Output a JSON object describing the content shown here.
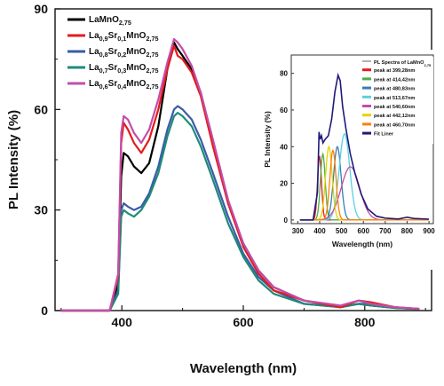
{
  "chart_data": [
    {
      "type": "line",
      "xlabel": "Wavelength (nm)",
      "ylabel": "PL Intensity (%)",
      "xlim": [
        290,
        910
      ],
      "ylim": [
        0,
        90
      ],
      "x_ticks": [
        "400",
        "600",
        "800"
      ],
      "x_tick_values": [
        400,
        600,
        800
      ],
      "y_ticks": [
        "0",
        "30",
        "60",
        "90"
      ],
      "y_tick_values": [
        0,
        30,
        60,
        90
      ],
      "legend_placement": "top-left",
      "series": [
        {
          "legend": [
            [
              "La",
              "MnO",
              ""
            ],
            [
              "",
              "",
              "2,75"
            ]
          ],
          "label_plain": "LaMnO2,75",
          "label_parts": {
            "main": "LaMnO",
            "sub": "2,75"
          },
          "color": "#000000",
          "points": [
            [
              300,
              0
            ],
            [
              380,
              0
            ],
            [
              394,
              8
            ],
            [
              399,
              40
            ],
            [
              403,
              47
            ],
            [
              410,
              46
            ],
            [
              420,
              43
            ],
            [
              432,
              41
            ],
            [
              445,
              44
            ],
            [
              460,
              55
            ],
            [
              475,
              72
            ],
            [
              486,
              80
            ],
            [
              492,
              78
            ],
            [
              500,
              76
            ],
            [
              515,
              72
            ],
            [
              530,
              65
            ],
            [
              550,
              50
            ],
            [
              575,
              32
            ],
            [
              600,
              20
            ],
            [
              625,
              12
            ],
            [
              650,
              7
            ],
            [
              700,
              3
            ],
            [
              760,
              1
            ],
            [
              790,
              2
            ],
            [
              810,
              1.5
            ],
            [
              850,
              0.8
            ],
            [
              890,
              0.5
            ]
          ]
        },
        {
          "label_plain": "La0,9Sr0,1MnO2,75",
          "label_parts": {
            "a": "La",
            "a_sub": "0,9",
            "b": "Sr",
            "b_sub": "0,1",
            "c": "MnO",
            "c_sub": "2,75"
          },
          "color": "#e41a1c",
          "points": [
            [
              300,
              0
            ],
            [
              380,
              0
            ],
            [
              394,
              10
            ],
            [
              399,
              50
            ],
            [
              403,
              56
            ],
            [
              410,
              54
            ],
            [
              420,
              50
            ],
            [
              432,
              47
            ],
            [
              445,
              51
            ],
            [
              460,
              60
            ],
            [
              475,
              72
            ],
            [
              486,
              79
            ],
            [
              492,
              76
            ],
            [
              500,
              75
            ],
            [
              515,
              71
            ],
            [
              530,
              64
            ],
            [
              550,
              49
            ],
            [
              575,
              32
            ],
            [
              600,
              19
            ],
            [
              625,
              11
            ],
            [
              650,
              6
            ],
            [
              700,
              3
            ],
            [
              760,
              1
            ],
            [
              790,
              3
            ],
            [
              810,
              2.5
            ],
            [
              850,
              1
            ],
            [
              890,
              0.5
            ]
          ]
        },
        {
          "label_plain": "La0,8Sr0,2MnO2,75",
          "label_parts": {
            "a": "La",
            "a_sub": "0,8",
            "b": "Sr",
            "b_sub": "0,2",
            "c": "MnO",
            "c_sub": "2,75"
          },
          "color": "#3a5ba8",
          "points": [
            [
              300,
              0
            ],
            [
              380,
              0
            ],
            [
              394,
              6
            ],
            [
              399,
              30
            ],
            [
              403,
              32
            ],
            [
              410,
              31
            ],
            [
              420,
              30
            ],
            [
              432,
              31
            ],
            [
              445,
              35
            ],
            [
              460,
              43
            ],
            [
              475,
              54
            ],
            [
              486,
              60
            ],
            [
              492,
              61
            ],
            [
              500,
              60
            ],
            [
              515,
              57
            ],
            [
              530,
              51
            ],
            [
              550,
              41
            ],
            [
              575,
              28
            ],
            [
              600,
              17
            ],
            [
              625,
              10
            ],
            [
              650,
              6
            ],
            [
              700,
              2
            ],
            [
              760,
              1
            ],
            [
              790,
              2
            ],
            [
              810,
              2
            ],
            [
              850,
              1
            ],
            [
              890,
              0.5
            ]
          ]
        },
        {
          "label_plain": "La0,7Sr0,3MnO2,75",
          "label_parts": {
            "a": "La",
            "a_sub": "0,7",
            "b": "Sr",
            "b_sub": "0,3",
            "c": "MnO",
            "c_sub": "2,75"
          },
          "color": "#1f8a7a",
          "points": [
            [
              300,
              0
            ],
            [
              380,
              0
            ],
            [
              394,
              5
            ],
            [
              399,
              28
            ],
            [
              403,
              30
            ],
            [
              410,
              29
            ],
            [
              420,
              28
            ],
            [
              432,
              30
            ],
            [
              445,
              34
            ],
            [
              460,
              41
            ],
            [
              475,
              52
            ],
            [
              486,
              58
            ],
            [
              492,
              59
            ],
            [
              500,
              58
            ],
            [
              515,
              55
            ],
            [
              530,
              49
            ],
            [
              550,
              39
            ],
            [
              575,
              26
            ],
            [
              600,
              16
            ],
            [
              625,
              9
            ],
            [
              650,
              5
            ],
            [
              700,
              2
            ],
            [
              760,
              1
            ],
            [
              790,
              2
            ],
            [
              810,
              1.5
            ],
            [
              850,
              0.8
            ],
            [
              890,
              0.4
            ]
          ]
        },
        {
          "label_plain": "La0,6Sr0,4MnO2,75",
          "label_parts": {
            "a": "La",
            "a_sub": "0,6",
            "b": "Sr",
            "b_sub": "0,4",
            "c": "MnO",
            "c_sub": "2,75"
          },
          "color": "#c44da8",
          "points": [
            [
              300,
              0
            ],
            [
              380,
              0
            ],
            [
              394,
              11
            ],
            [
              399,
              53
            ],
            [
              403,
              58
            ],
            [
              410,
              57
            ],
            [
              420,
              53
            ],
            [
              432,
              50
            ],
            [
              445,
              54
            ],
            [
              460,
              63
            ],
            [
              475,
              74
            ],
            [
              486,
              81
            ],
            [
              492,
              80
            ],
            [
              500,
              78
            ],
            [
              515,
              73
            ],
            [
              530,
              65
            ],
            [
              550,
              51
            ],
            [
              575,
              33
            ],
            [
              600,
              20
            ],
            [
              625,
              12
            ],
            [
              650,
              7
            ],
            [
              700,
              3
            ],
            [
              760,
              1.5
            ],
            [
              790,
              3
            ],
            [
              810,
              2
            ],
            [
              850,
              1
            ],
            [
              890,
              0.5
            ]
          ]
        }
      ]
    },
    {
      "type": "line",
      "xlabel": "Wavelength (nm)",
      "ylabel": "PL Intensity (%)",
      "xlim": [
        270,
        920
      ],
      "ylim": [
        -2,
        90
      ],
      "x_ticks": [
        "300",
        "400",
        "500",
        "600",
        "700",
        "800",
        "900"
      ],
      "x_tick_values": [
        300,
        400,
        500,
        600,
        700,
        800,
        900
      ],
      "y_ticks": [
        "0",
        "20",
        "40",
        "60",
        "80"
      ],
      "y_tick_values": [
        0,
        20,
        40,
        60,
        80
      ],
      "legend_placement": "top-right",
      "legend_title_main": "PL Spectra of LaMnO",
      "legend_title_sub": "2,75",
      "legend_title_plain": "PL Spectra of LaMnO2,75",
      "series": [
        {
          "name": "peak at 399,28nm",
          "color": "#e41a1c",
          "center": 399.28,
          "amplitude": 35,
          "sigma": 9
        },
        {
          "name": "peak at 414,42nm",
          "color": "#4daf4a",
          "center": 414.42,
          "amplitude": 36,
          "sigma": 11
        },
        {
          "name": "peak at 480,83nm",
          "color": "#377eb8",
          "center": 480.83,
          "amplitude": 40,
          "sigma": 17
        },
        {
          "name": "peak at 513,67nm",
          "color": "#5ad0e0",
          "center": 513.67,
          "amplitude": 47,
          "sigma": 24
        },
        {
          "name": "peak at 540,60nm",
          "color": "#c44da8",
          "center": 540.6,
          "amplitude": 29,
          "sigma": 42
        },
        {
          "name": "peak at 442,12nm",
          "color": "#e6d300",
          "center": 442.12,
          "amplitude": 40,
          "sigma": 15
        },
        {
          "name": "peak at 460,70nm",
          "color": "#ff7f00",
          "center": 460.7,
          "amplitude": 38,
          "sigma": 14
        },
        {
          "name": "Fit Liner",
          "color": "#1f1a7a",
          "fit": true
        }
      ]
    }
  ]
}
